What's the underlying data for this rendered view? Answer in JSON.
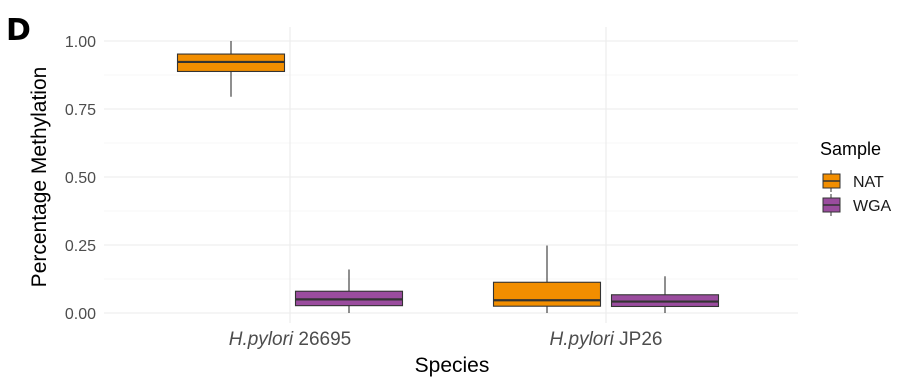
{
  "panel_label": "D",
  "chart_data": {
    "type": "box",
    "xlabel": "Species",
    "ylabel": "Percentage Methylation",
    "ylim": [
      0,
      1
    ],
    "yticks": [
      "0.00",
      "0.25",
      "0.50",
      "0.75",
      "1.00"
    ],
    "categories": [
      {
        "italic": "H.pylori",
        "rest": " 26695"
      },
      {
        "italic": "H.pylori",
        "rest": " JP26"
      }
    ],
    "legend": {
      "title": "Sample",
      "placement": "right",
      "entries": [
        {
          "label": "NAT",
          "color": "#F28E00"
        },
        {
          "label": "WGA",
          "color": "#9A4C9E"
        }
      ]
    },
    "series": [
      {
        "name": "NAT",
        "color": "#F28E00",
        "boxes": [
          {
            "category": 0,
            "min": 0.795,
            "q1": 0.888,
            "median": 0.923,
            "q3": 0.952,
            "max": 1.0
          },
          {
            "category": 1,
            "min": 0.0,
            "q1": 0.025,
            "median": 0.047,
            "q3": 0.113,
            "max": 0.248
          }
        ]
      },
      {
        "name": "WGA",
        "color": "#9A4C9E",
        "boxes": [
          {
            "category": 0,
            "min": 0.0,
            "q1": 0.027,
            "median": 0.05,
            "q3": 0.08,
            "max": 0.16
          },
          {
            "category": 1,
            "min": 0.0,
            "q1": 0.024,
            "median": 0.042,
            "q3": 0.067,
            "max": 0.135
          }
        ]
      }
    ],
    "grid": true
  }
}
